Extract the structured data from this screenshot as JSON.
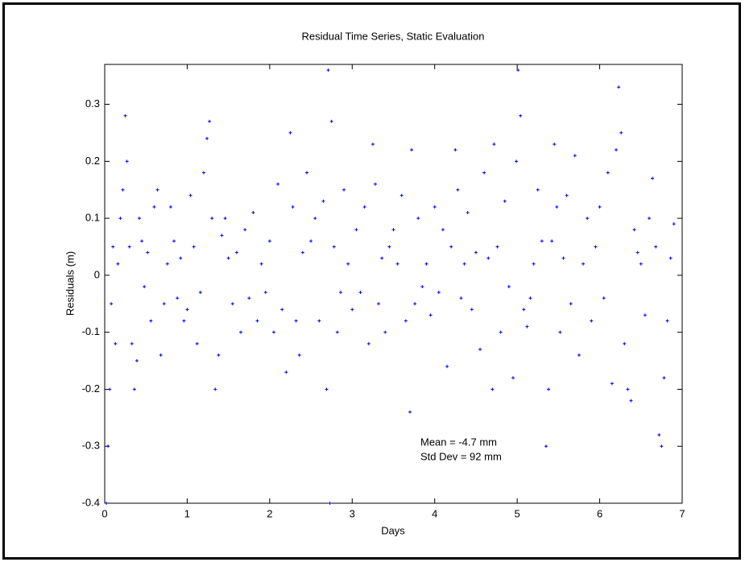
{
  "chart_data": {
    "type": "scatter",
    "title": "Residual Time Series, Static Evaluation",
    "x_label": "Days",
    "y_label": "Residuals (m)",
    "annotations": [
      "Mean = -4.7 mm",
      "Std Dev = 92 mm"
    ],
    "xlim": [
      0,
      7
    ],
    "ylim": [
      -0.4,
      0.37
    ],
    "xticks": [
      0,
      1,
      2,
      3,
      4,
      5,
      6,
      7
    ],
    "yticks": [
      -0.4,
      -0.3,
      -0.2,
      -0.1,
      0,
      0.1,
      0.2,
      0.3
    ],
    "grid": false,
    "marker": "+",
    "series": [
      {
        "name": "Residuals",
        "color": "#0000ff",
        "x": [
          0.02,
          0.04,
          0.06,
          0.08,
          0.1,
          0.13,
          0.16,
          0.19,
          0.22,
          0.25,
          0.27,
          0.3,
          0.33,
          0.36,
          0.39,
          0.42,
          0.45,
          0.48,
          0.52,
          0.56,
          0.6,
          0.64,
          0.68,
          0.72,
          0.76,
          0.8,
          0.84,
          0.88,
          0.92,
          0.96,
          1.0,
          1.04,
          1.08,
          1.12,
          1.16,
          1.2,
          1.24,
          1.27,
          1.3,
          1.34,
          1.38,
          1.42,
          1.46,
          1.5,
          1.55,
          1.6,
          1.65,
          1.7,
          1.75,
          1.8,
          1.85,
          1.9,
          1.95,
          2.0,
          2.05,
          2.1,
          2.15,
          2.2,
          2.25,
          2.28,
          2.32,
          2.36,
          2.4,
          2.45,
          2.5,
          2.55,
          2.6,
          2.65,
          2.69,
          2.71,
          2.73,
          2.75,
          2.78,
          2.82,
          2.86,
          2.9,
          2.95,
          3.0,
          3.05,
          3.1,
          3.15,
          3.2,
          3.25,
          3.28,
          3.32,
          3.36,
          3.4,
          3.45,
          3.5,
          3.55,
          3.6,
          3.65,
          3.7,
          3.72,
          3.76,
          3.8,
          3.85,
          3.9,
          3.95,
          4.0,
          4.05,
          4.1,
          4.15,
          4.2,
          4.25,
          4.28,
          4.32,
          4.36,
          4.4,
          4.45,
          4.5,
          4.55,
          4.6,
          4.65,
          4.7,
          4.72,
          4.76,
          4.8,
          4.85,
          4.9,
          4.95,
          4.99,
          5.01,
          5.04,
          5.08,
          5.12,
          5.16,
          5.2,
          5.25,
          5.3,
          5.35,
          5.38,
          5.42,
          5.45,
          5.48,
          5.52,
          5.56,
          5.6,
          5.65,
          5.7,
          5.75,
          5.8,
          5.85,
          5.9,
          5.95,
          6.0,
          6.05,
          6.1,
          6.15,
          6.2,
          6.23,
          6.26,
          6.3,
          6.34,
          6.38,
          6.42,
          6.46,
          6.5,
          6.55,
          6.6,
          6.64,
          6.68,
          6.72,
          6.75,
          6.78,
          6.82,
          6.86,
          6.9
        ],
        "values": [
          -0.4,
          -0.3,
          -0.2,
          -0.05,
          0.05,
          -0.12,
          0.02,
          0.1,
          0.15,
          0.28,
          0.2,
          0.05,
          -0.12,
          -0.2,
          -0.15,
          0.1,
          0.06,
          -0.02,
          0.04,
          -0.08,
          0.12,
          0.15,
          -0.14,
          -0.05,
          0.02,
          0.12,
          0.06,
          -0.04,
          0.03,
          -0.08,
          -0.06,
          0.14,
          0.05,
          -0.12,
          -0.03,
          0.18,
          0.24,
          0.27,
          0.1,
          -0.2,
          -0.14,
          0.07,
          0.1,
          0.03,
          -0.05,
          0.04,
          -0.1,
          0.08,
          -0.04,
          0.11,
          -0.08,
          0.02,
          -0.03,
          0.06,
          -0.1,
          0.16,
          -0.06,
          -0.17,
          0.25,
          0.12,
          -0.08,
          -0.14,
          0.04,
          0.18,
          0.06,
          0.1,
          -0.08,
          0.13,
          -0.2,
          0.36,
          -0.4,
          0.27,
          0.05,
          -0.1,
          -0.03,
          0.15,
          0.02,
          -0.06,
          0.08,
          -0.03,
          0.12,
          -0.12,
          0.23,
          0.16,
          -0.05,
          0.03,
          -0.1,
          0.05,
          0.08,
          0.02,
          0.14,
          -0.08,
          -0.24,
          0.22,
          -0.05,
          0.1,
          -0.02,
          0.02,
          -0.07,
          0.12,
          -0.03,
          0.08,
          -0.16,
          0.05,
          0.22,
          0.15,
          -0.04,
          0.02,
          0.11,
          -0.06,
          0.04,
          -0.13,
          0.18,
          0.03,
          -0.2,
          0.23,
          0.05,
          -0.1,
          0.13,
          -0.02,
          -0.18,
          0.2,
          0.36,
          0.28,
          -0.06,
          -0.09,
          -0.04,
          0.02,
          0.15,
          0.06,
          -0.3,
          -0.2,
          0.06,
          0.23,
          0.12,
          -0.1,
          0.03,
          0.14,
          -0.05,
          0.21,
          -0.14,
          0.02,
          0.1,
          -0.08,
          0.05,
          0.12,
          -0.04,
          0.18,
          -0.19,
          0.22,
          0.33,
          0.25,
          -0.12,
          -0.2,
          -0.22,
          0.08,
          0.04,
          0.02,
          -0.07,
          0.1,
          0.17,
          0.05,
          -0.28,
          -0.3,
          -0.18,
          -0.08,
          0.03,
          0.09
        ]
      }
    ]
  }
}
